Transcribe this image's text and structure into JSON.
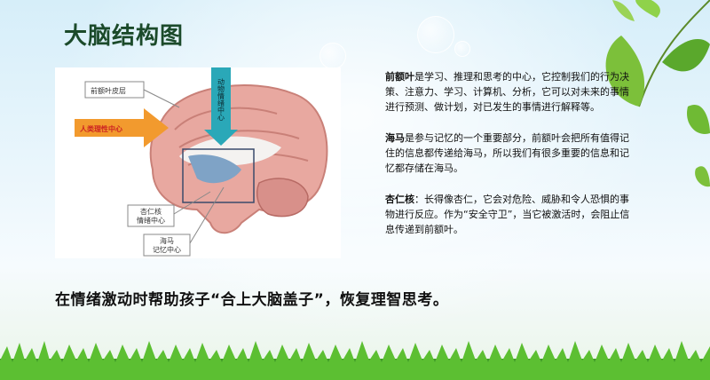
{
  "slide": {
    "title": "大脑结构图",
    "slogan": "在情绪激动时帮助孩子“合上大脑盖子”，恢复理智思考。"
  },
  "figure": {
    "labels": {
      "prefrontal": "前额叶皮层",
      "rational": "人类理性中心",
      "emotion_arrow": "动物情绪中心",
      "amygdala_1": "杏仁核",
      "amygdala_2": "情绪中心",
      "hippocampus_1": "海马",
      "hippocampus_2": "记忆中心"
    }
  },
  "notes": [
    {
      "term": "前额叶",
      "text": "是学习、推理和思考的中心，它控制我们的行为决策、注意力、学习、计算机、分析，它可以对未来的事情进行预测、做计划，对已发生的事情进行解释等。"
    },
    {
      "term": "海马",
      "text": "是参与记忆的一个重要部分，前额叶会把所有值得记住的信息都传递给海马，所以我们有很多重要的信息和记忆都存储在海马。"
    },
    {
      "term": "杏仁核",
      "text": "：长得像杏仁，它会对危险、威胁和令人恐惧的事物进行反应。作为“安全守卫”，当它被激活时，会阻止信息传递到前额叶。"
    }
  ]
}
